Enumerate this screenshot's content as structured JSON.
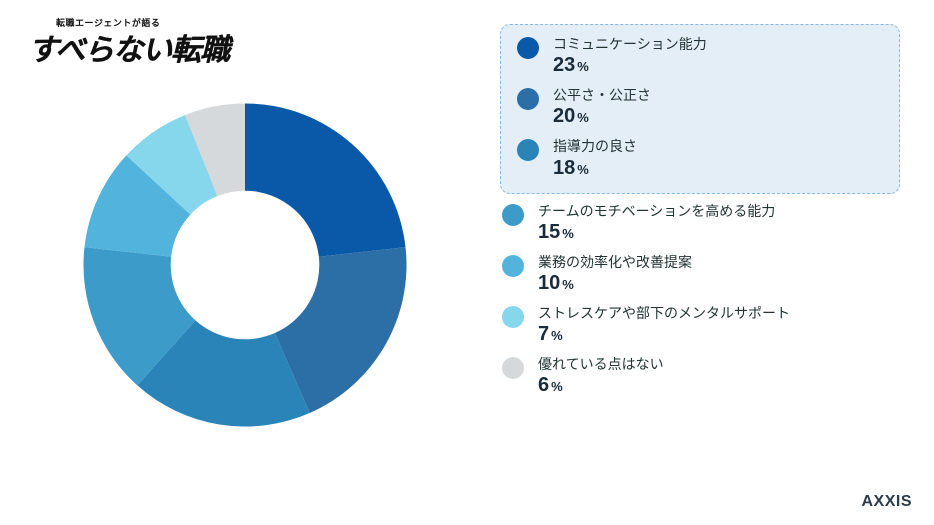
{
  "logo": {
    "overline": "転職エージェントが語る",
    "main": "すべらない転職"
  },
  "chart": {
    "type": "donut",
    "inner_radius_ratio": 0.46,
    "start_angle_deg": -90,
    "background_color": "#ffffff",
    "highlight_box": {
      "border_color": "#8fb7d6",
      "background_color": "#e3eef7",
      "covers_first_n": 3
    },
    "slices": [
      {
        "label": "コミュニケーション能力",
        "value": 23,
        "color": "#0a58a8"
      },
      {
        "label": "公平さ・公正さ",
        "value": 20,
        "color": "#2b6fa6"
      },
      {
        "label": "指導力の良さ",
        "value": 18,
        "color": "#2b84b8"
      },
      {
        "label": "チームのモチベーションを高める能力",
        "value": 15,
        "color": "#3d9bc9"
      },
      {
        "label": "業務の効率化や改善提案",
        "value": 10,
        "color": "#52b3dd"
      },
      {
        "label": "ストレスケアや部下のメンタルサポート",
        "value": 7,
        "color": "#86d6ec"
      },
      {
        "label": "優れている点はない",
        "value": 6,
        "color": "#d6d9db"
      }
    ],
    "percent_suffix": "%",
    "label_fontsize": 14,
    "value_fontsize": 20,
    "value_color": "#1a2b39"
  },
  "brand": "AXXIS"
}
